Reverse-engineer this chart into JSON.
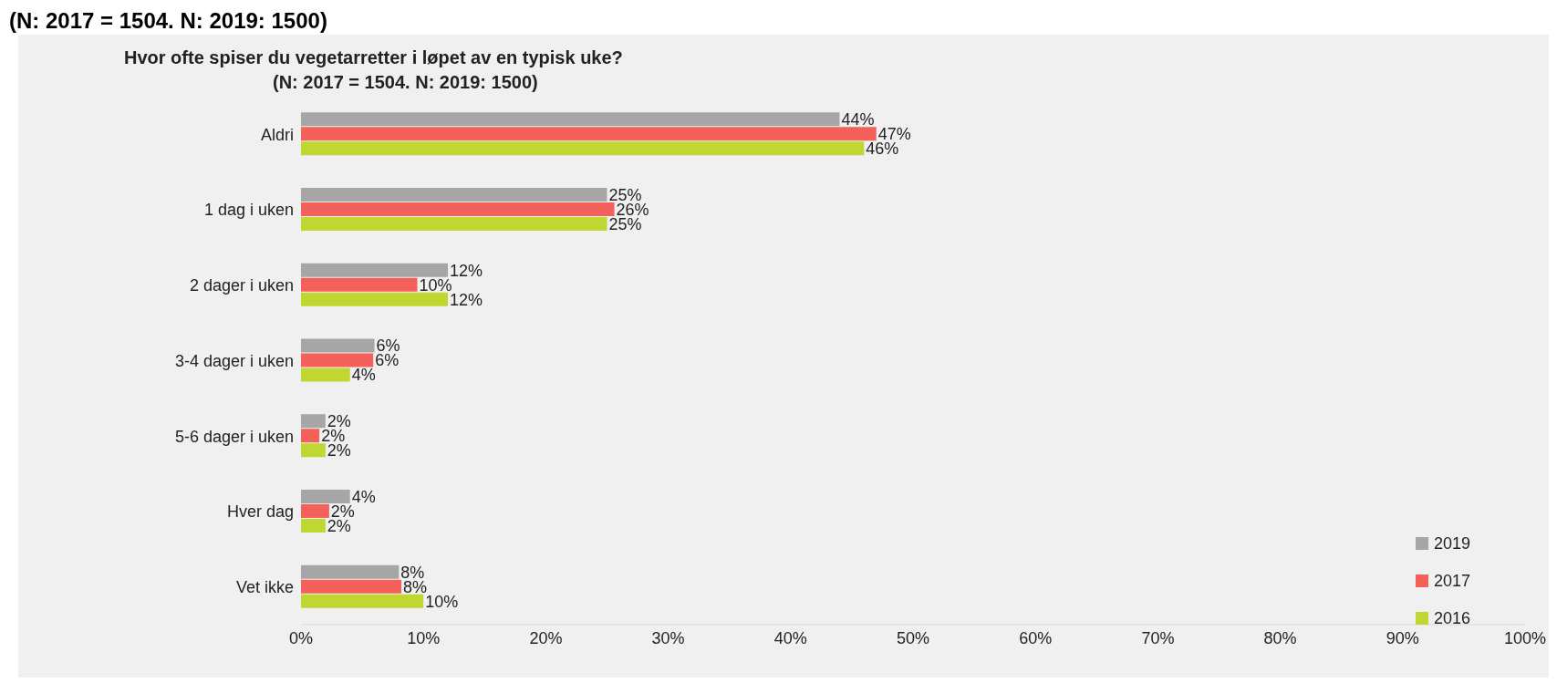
{
  "chart_data": {
    "type": "bar",
    "orientation": "horizontal",
    "title": "Hvor ofte spiser du vegetarretter i løpet av en typisk uke?",
    "subtitle": "(N: 2017 = 1504. N: 2019: 1500)",
    "annotations": [
      "(N: 2017 = 1504. N: 2019: 1500)"
    ],
    "categories": [
      "Aldri",
      "1 dag i uken",
      "2 dager i uken",
      "3-4 dager i uken",
      "5-6 dager i uken",
      "Hver dag",
      "Vet ikke"
    ],
    "series": [
      {
        "name": "2019",
        "color": "#a6a6a6",
        "values": [
          44,
          25,
          12,
          6,
          2,
          4,
          8
        ],
        "value_labels": [
          "44%",
          "25%",
          "12%",
          "6%",
          "2%",
          "4%",
          "8%"
        ]
      },
      {
        "name": "2017",
        "color": "#f4615a",
        "values": [
          47,
          25.6,
          9.5,
          5.9,
          1.5,
          2.3,
          8.2
        ],
        "value_labels": [
          "47%",
          "26%",
          "10%",
          "6%",
          "2%",
          "2%",
          "8%"
        ]
      },
      {
        "name": "2016",
        "color": "#bfd730",
        "values": [
          46,
          25,
          12,
          4,
          2,
          2,
          10
        ],
        "value_labels": [
          "46%",
          "25%",
          "12%",
          "4%",
          "2%",
          "2%",
          "10%"
        ]
      }
    ],
    "xlim": [
      0,
      100
    ],
    "xticks": [
      {
        "value": 0,
        "label": "0%"
      },
      {
        "value": 10,
        "label": "10%"
      },
      {
        "value": 20,
        "label": "20%"
      },
      {
        "value": 30,
        "label": "30%"
      },
      {
        "value": 40,
        "label": "40%"
      },
      {
        "value": 50,
        "label": "50%"
      },
      {
        "value": 60,
        "label": "60%"
      },
      {
        "value": 70,
        "label": "70%"
      },
      {
        "value": 80,
        "label": "80%"
      },
      {
        "value": 90,
        "label": "90%"
      },
      {
        "value": 100,
        "label": "100%"
      }
    ],
    "grid": false,
    "legend": "bottom right"
  }
}
